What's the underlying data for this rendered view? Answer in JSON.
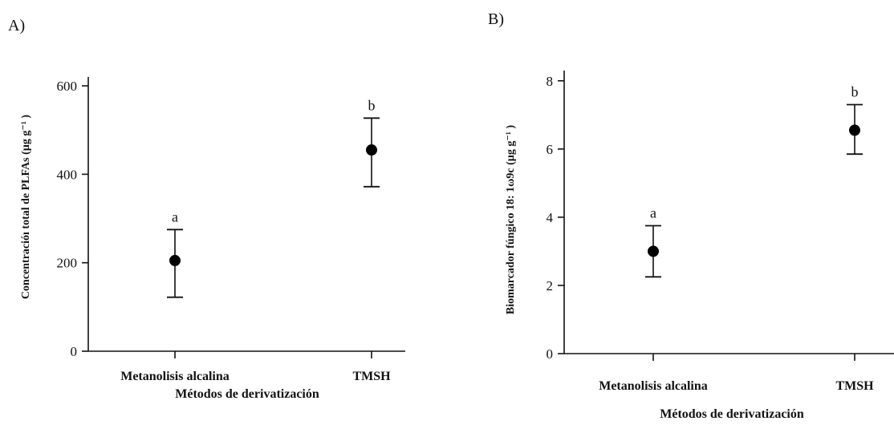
{
  "chart_data": [
    {
      "type": "scatter",
      "panel_label": "A)",
      "categories": [
        "Metanolisis alcalina",
        "TMSH"
      ],
      "series": [
        {
          "values": [
            205,
            455
          ],
          "error_low": [
            122,
            372
          ],
          "error_high": [
            275,
            527
          ],
          "labels": [
            "a",
            "b"
          ]
        }
      ],
      "xlabel": "Métodos de derivatización",
      "ylabel": "Concentracióı total de PLFAs (µg g⁻¹ )",
      "ylim": [
        0,
        620
      ],
      "yticks": [
        0,
        200,
        400,
        600
      ],
      "grid": false
    },
    {
      "type": "scatter",
      "panel_label": "B)",
      "categories": [
        "Metanolisis alcalina",
        "TMSH"
      ],
      "series": [
        {
          "values": [
            3.0,
            6.55
          ],
          "error_low": [
            2.25,
            5.85
          ],
          "error_high": [
            3.75,
            7.3
          ],
          "labels": [
            "a",
            "b"
          ]
        }
      ],
      "xlabel": "Métodos de derivatización",
      "ylabel": "Biomarcador fúngico 18: 1ω9c (µg g⁻¹ )",
      "ylim": [
        0,
        8.3
      ],
      "yticks": [
        0,
        2,
        4,
        6,
        8
      ],
      "grid": false
    }
  ]
}
